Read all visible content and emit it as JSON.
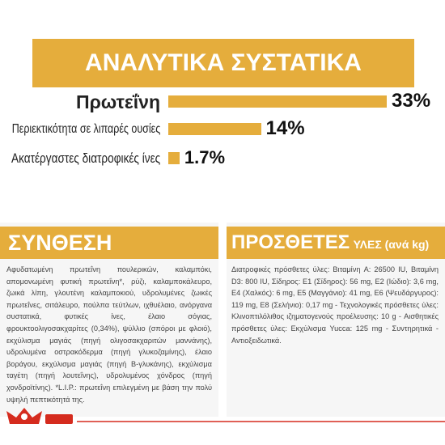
{
  "header": {
    "title": "ΑΝΑΛΥΤΙΚΑ ΣΥΣΤΑΤΙΚΑ"
  },
  "chart_data": {
    "type": "bar",
    "categories": [
      "Πρωτεΐνη",
      "Περιεκτικότητα σε λιπαρές ουσίες",
      "Ακατέργαστες διατροφικές ίνες"
    ],
    "values": [
      33,
      14,
      1.7
    ],
    "value_labels": [
      "33%",
      "14%",
      "1.7%"
    ],
    "color": "#e5ad3c"
  },
  "composition": {
    "title": "ΣΥΝΘΕΣΗ",
    "text": "Αφυδατωμένη πρωτεΐνη πουλερικών, καλαμπόκι, απομονωμένη φυτική πρωτεΐνη*, ρύζι, καλαμποκάλευρο, ζωικά λίπη, γλουτένη καλαμποκιού, υδρολυμένες ζωικές πρωτεΐνες, σιτάλευρο, πούλπα τεύτλων, ιχθυέλαιο, ανόργανα συστατικά, φυτικές ίνες, έλαιο σόγιας, φρουκτοολιγοσακχαρίτες (0,34%), ψύλλιο (σπόροι με φλοιό), εκχύλισμα μαγιάς (πηγή ολιγοσακχαριτών μαννάνης), υδρολυμένα οστρακόδερμα (πηγή γλυκοζαμίνης), έλαιο βοράγου, εκχύλισμα μαγιάς (πηγή Β-γλυκάνης), εκχύλισμα ταγέτη (πηγή λουτεΐνης), υδρολυμένος χόνδρος (πηγή χονδροϊτίνης). *L.I.P.: πρωτεΐνη επιλεγμένη με βάση την πολύ υψηλή πεπτικότητά της."
  },
  "additives": {
    "title": "ΠΡΟΣΘΕΤΕΣ",
    "subtitle": "ΥΛΕΣ (ανά kg)",
    "text": "Διατροφικές πρόσθετες ύλες: Βιταμίνη A: 26500 IU, Βιταμίνη D3: 800 IU, Σίδηρος: E1 (Σίδηρος): 56 mg, E2 (Ιώδιο): 3,6 mg, E4 (Χαλκός): 6 mg, E5 (Μαγγάνιο): 41 mg, E6 (Ψευδάργυρος): 119 mg, E8 (Σελήνιο): 0,17 mg - Τεχνολογικές πρόσθετες ύλες: Κλινοπτιλόλιθος ιζηματογενούς προέλευσης: 10 g - Αισθητικές πρόσθετες ύλες: Εκχύλισμα Yucca: 125 mg - Συντηρητικά - Αντιοξειδωτικά."
  }
}
